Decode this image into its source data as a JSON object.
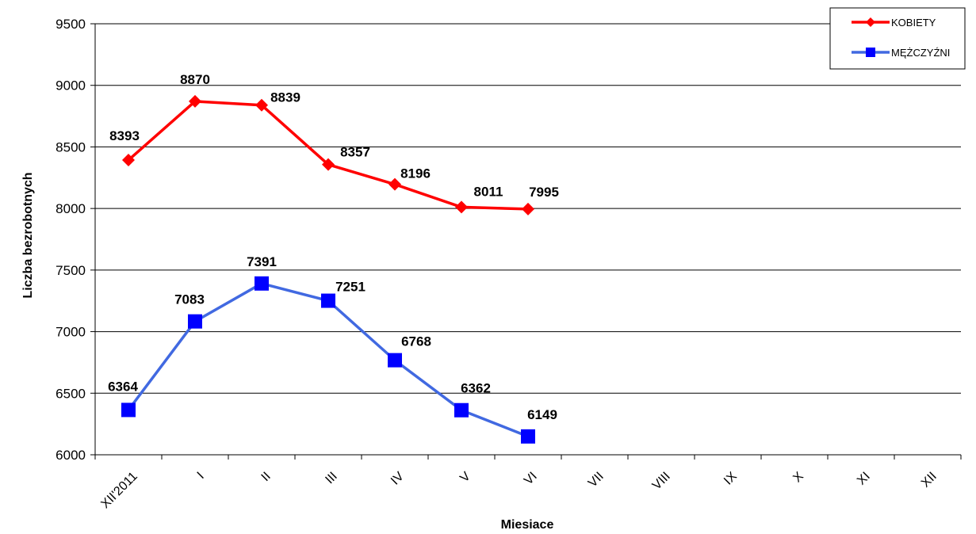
{
  "chart_data": {
    "type": "line",
    "categories": [
      "XII'2011",
      "I",
      "II",
      "III",
      "IV",
      "V",
      "VI",
      "VII",
      "VIII",
      "IX",
      "X",
      "XI",
      "XII"
    ],
    "series": [
      {
        "name": "KOBIETY",
        "color": "#ff0000",
        "marker": "diamond",
        "values": [
          8393,
          8870,
          8839,
          8357,
          8196,
          8011,
          7995,
          null,
          null,
          null,
          null,
          null,
          null
        ]
      },
      {
        "name": "MĘŻCZYŹNI",
        "color": "#4169e1",
        "markerColor": "#0000ff",
        "marker": "square",
        "values": [
          6364,
          7083,
          7391,
          7251,
          6768,
          6362,
          6149,
          null,
          null,
          null,
          null,
          null,
          null
        ]
      }
    ],
    "xlabel": "Miesiace",
    "ylabel": "Liczba bezrobotnych",
    "ylim": [
      6000,
      9500
    ],
    "yticks": [
      6000,
      6500,
      7000,
      7500,
      8000,
      8500,
      9000,
      9500
    ],
    "grid": true,
    "legend": "top-right"
  }
}
